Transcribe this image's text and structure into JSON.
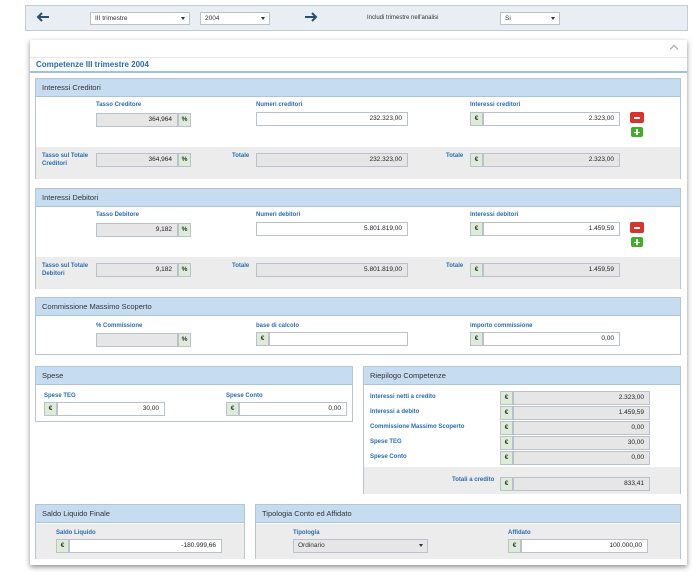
{
  "topbar": {
    "period_value": "III trimestre",
    "year_value": "2004",
    "include_label": "Includi trimestre nell'analisi",
    "include_value": "Si"
  },
  "main": {
    "title": "Competenze III trimestre 2004"
  },
  "interessi_creditori": {
    "title": "Interessi Creditori",
    "rate_label": "Tasso Creditore",
    "rate_value": "364,964",
    "numbers_label": "Numeri creditori",
    "numbers_value": "232.323,00",
    "interest_label": "Interessi creditori",
    "interest_value": "2.323,00",
    "total_rate_label": "Tasso sul Totale Creditori",
    "total_rate_value": "364,964",
    "total_numbers_label": "Totale",
    "total_numbers_value": "232.323,00",
    "total_interest_label": "Totale",
    "total_interest_value": "2.323,00"
  },
  "interessi_debitori": {
    "title": "Interessi Debitori",
    "rate_label": "Tasso Debitore",
    "rate_value": "9,182",
    "numbers_label": "Numeri debitori",
    "numbers_value": "5.801.819,00",
    "interest_label": "Interessi debitori",
    "interest_value": "1.459,59",
    "total_rate_label": "Tasso sul Totale Debitori",
    "total_rate_value": "9,182",
    "total_numbers_label": "Totale",
    "total_numbers_value": "5.801.819,00",
    "total_interest_label": "Totale",
    "total_interest_value": "1.459,59"
  },
  "commissione": {
    "title": "Commissione Massimo Scoperto",
    "percent_label": "% Commissione",
    "percent_value": "",
    "base_label": "base di calcolo",
    "base_value": "",
    "amount_label": "importo commissione",
    "amount_value": "0,00"
  },
  "spese": {
    "title": "Spese",
    "teg_label": "Spese TEG",
    "teg_value": "30,00",
    "conto_label": "Spese Conto",
    "conto_value": "0,00"
  },
  "riepilogo": {
    "title": "Riepilogo Competenze",
    "rows": [
      {
        "label": "Interessi netti a credito",
        "value": "2.323,00"
      },
      {
        "label": "Interessi a debito",
        "value": "1.459,59"
      },
      {
        "label": "Commissione Massimo Scoperto",
        "value": "0,00"
      },
      {
        "label": "Spese TEG",
        "value": "30,00"
      },
      {
        "label": "Spese Conto",
        "value": "0,00"
      }
    ],
    "total_label": "Totali a credito",
    "total_value": "833,41"
  },
  "saldo": {
    "title": "Saldo Liquido Finale",
    "label": "Saldo Liquido",
    "value": "-180.999,66"
  },
  "tipologia": {
    "title": "Tipologia Conto ed Affidato",
    "type_label": "Tipologia",
    "type_value": "Ordinario",
    "affidato_label": "Affidato",
    "affidato_value": "100.000,00"
  },
  "symbols": {
    "percent": "%",
    "euro": "€"
  },
  "colors": {
    "panel_header": "#c6ddf1",
    "title_blue": "#2b6cb0",
    "addon_green": "#dcecd7",
    "remove_red": "#d9342b",
    "add_green": "#3fae29"
  }
}
